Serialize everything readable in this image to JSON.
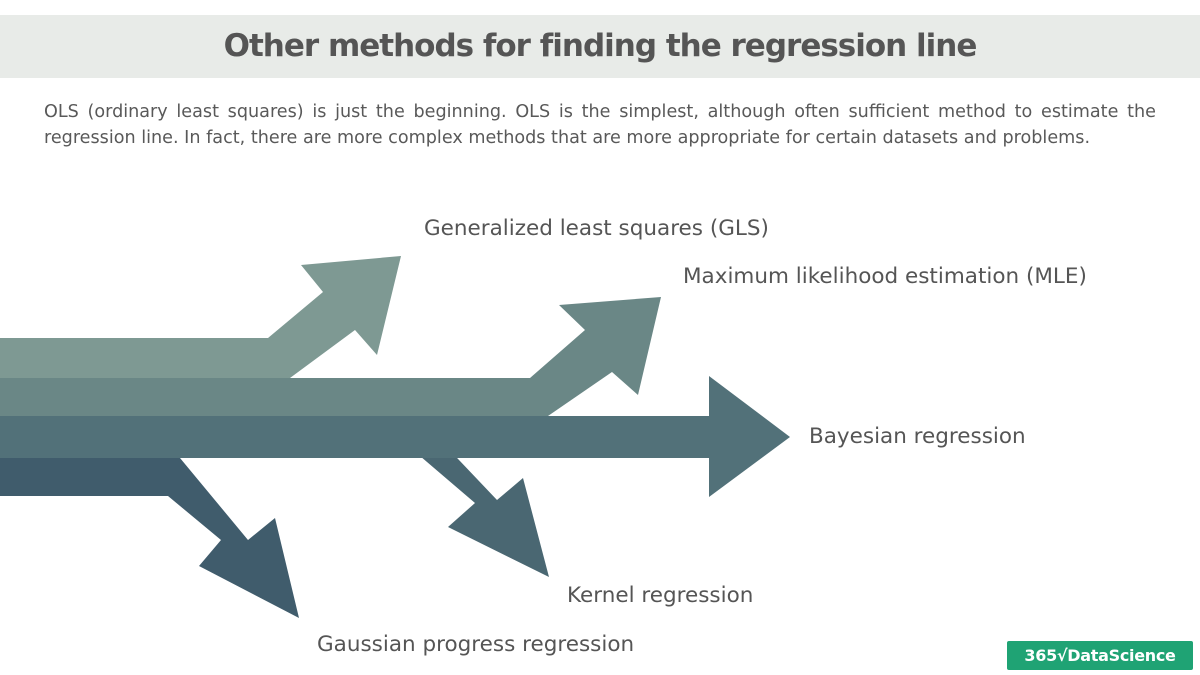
{
  "title": "Other methods for finding the regression line",
  "intro": "OLS (ordinary least squares) is just the beginning. OLS is the simplest, although often sufficient method to estimate the regression line. In fact, there are more complex methods that are more appropriate for certain datasets and problems.",
  "arrows": [
    {
      "label": "Generalized least squares (GLS)",
      "color": "#7e9993"
    },
    {
      "label": "Maximum likelihood estimation (MLE)",
      "color": "#6a8786"
    },
    {
      "label": "Bayesian regression",
      "color": "#527179"
    },
    {
      "label": "Kernel regression",
      "color": "#4a6772"
    },
    {
      "label": "Gaussian progress regression",
      "color": "#405c6c"
    }
  ],
  "logo": {
    "text": "365√DataScience",
    "color": "#1fa374"
  }
}
